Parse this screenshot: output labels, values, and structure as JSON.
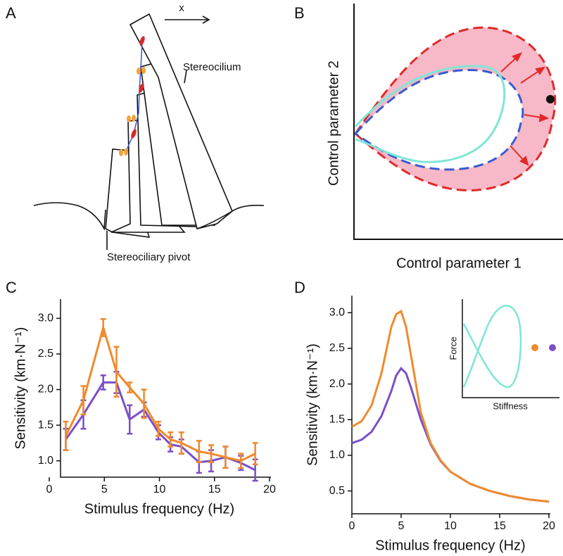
{
  "panels": {
    "a": "A",
    "b": "B",
    "c": "C",
    "d": "D"
  },
  "diagram_a": {
    "direction": "x",
    "label_top": "Stereocilium",
    "label_bottom": "Stereociliary pivot"
  },
  "diagram_b": {
    "xlabel": "Control parameter 1",
    "ylabel": "Control  parameter 2"
  },
  "inset_d": {
    "ylabel": "Force",
    "xlabel": "Stiffness"
  },
  "chart_data": [
    {
      "type": "line",
      "xlabel": "Stimulus frequency (Hz)",
      "ylabel": "Sensitivity (km·N⁻¹)",
      "xlim": [
        0,
        20
      ],
      "ylim": [
        0.77,
        3.27
      ],
      "xticks": [
        0,
        5,
        10,
        15,
        20
      ],
      "yticks": [
        {
          "value": 1,
          "label": "1.0"
        },
        {
          "value": 1.5,
          "label": "1.5"
        },
        {
          "value": 2,
          "label": "2.0"
        },
        {
          "value": 2.5,
          "label": "2.5"
        },
        {
          "value": 3,
          "label": "3.0"
        }
      ],
      "x": [
        1.5,
        3.1,
        4.9,
        6.1,
        7.3,
        8.6,
        9.9,
        11.0,
        12.0,
        13.6,
        14.7,
        16.0,
        17.4,
        18.7
      ],
      "series": [
        {
          "color": "#7b4fc8",
          "values": [
            1.3,
            1.65,
            2.1,
            2.1,
            1.58,
            1.72,
            1.4,
            1.23,
            1.2,
            0.98,
            1.0,
            1.05,
            0.97,
            0.87
          ],
          "errors": [
            0.15,
            0.2,
            0.1,
            0.15,
            0.2,
            0.1,
            0.1,
            0.1,
            0.1,
            0.15,
            0.15,
            0.15,
            0.1,
            0.15
          ]
        },
        {
          "color": "#f08a2c",
          "values": [
            1.35,
            1.85,
            2.87,
            2.25,
            2.03,
            1.8,
            1.45,
            1.3,
            1.25,
            1.13,
            1.1,
            1.05,
            1.0,
            1.1
          ],
          "errors": [
            0.2,
            0.2,
            0.12,
            0.35,
            0.07,
            0.2,
            0.1,
            0.1,
            0.15,
            0.15,
            0.12,
            0.15,
            0.1,
            0.15
          ]
        }
      ]
    },
    {
      "type": "line",
      "xlabel": "Stimulus frequency (Hz)",
      "ylabel": "Sensitivity (km·N⁻¹)",
      "xlim": [
        0,
        20
      ],
      "ylim": [
        0.18,
        3.24
      ],
      "xticks": [
        0,
        5,
        10,
        15,
        20
      ],
      "yticks": [
        0.5,
        {
          "value": 1,
          "label": "1.0"
        },
        1.5,
        {
          "value": 2,
          "label": "2.0"
        },
        2.5,
        {
          "value": 3,
          "label": "3.0"
        }
      ],
      "x": [
        0,
        1,
        2,
        3,
        4,
        4.5,
        5,
        5.5,
        6,
        7,
        8,
        9,
        10,
        12,
        14,
        16,
        18,
        20
      ],
      "series": [
        {
          "color": "#7b4fc8",
          "values": [
            1.17,
            1.22,
            1.33,
            1.55,
            1.9,
            2.12,
            2.22,
            2.15,
            1.95,
            1.5,
            1.15,
            0.92,
            0.77,
            0.6,
            0.5,
            0.43,
            0.38,
            0.35
          ]
        },
        {
          "color": "#f08a2c",
          "values": [
            1.4,
            1.48,
            1.7,
            2.15,
            2.8,
            2.98,
            3.02,
            2.8,
            2.4,
            1.6,
            1.17,
            0.93,
            0.77,
            0.6,
            0.5,
            0.43,
            0.38,
            0.35
          ]
        }
      ]
    }
  ]
}
